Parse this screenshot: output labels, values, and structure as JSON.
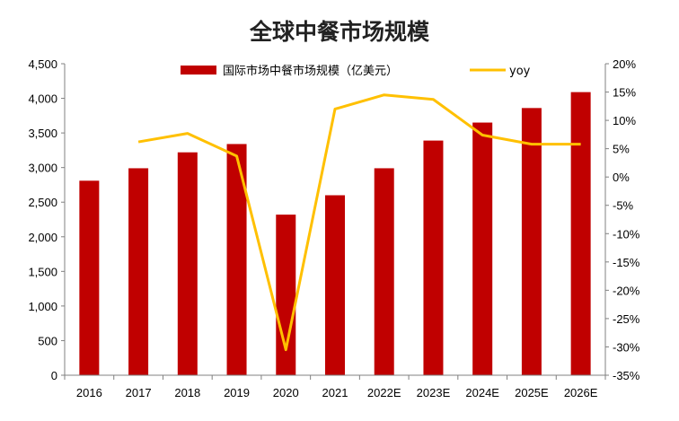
{
  "chart_data": {
    "type": "bar",
    "title": "全球中餐市场规模",
    "categories": [
      "2016",
      "2017",
      "2018",
      "2019",
      "2020",
      "2021",
      "2022E",
      "2023E",
      "2024E",
      "2025E",
      "2026E"
    ],
    "series": [
      {
        "name": "国际市场中餐市场规模（亿美元）",
        "type": "bar",
        "axis": "left",
        "color": "#C00000",
        "values": [
          2810,
          2990,
          3220,
          3340,
          2320,
          2600,
          2990,
          3390,
          3650,
          3860,
          4090
        ]
      },
      {
        "name": "yoy",
        "type": "line",
        "axis": "right",
        "color": "#FFC000",
        "values": [
          null,
          0.062,
          0.077,
          0.037,
          -0.305,
          0.12,
          0.145,
          0.137,
          0.074,
          0.058,
          0.058
        ]
      }
    ],
    "y_left": {
      "min": 0,
      "max": 4500,
      "step": 500,
      "tick_labels": [
        "0",
        "500",
        "1,000",
        "1,500",
        "2,000",
        "2,500",
        "3,000",
        "3,500",
        "4,000",
        "4,500"
      ]
    },
    "y_right": {
      "min": -0.35,
      "max": 0.2,
      "step": 0.05,
      "tick_labels": [
        "-35%",
        "-30%",
        "-25%",
        "-20%",
        "-15%",
        "-10%",
        "-5%",
        "0%",
        "5%",
        "10%",
        "15%",
        "20%"
      ]
    },
    "legend": {
      "position": "top-center",
      "bar_label": "国际市场中餐市场规模（亿美元）",
      "line_label": "yoy"
    },
    "grid": false
  }
}
